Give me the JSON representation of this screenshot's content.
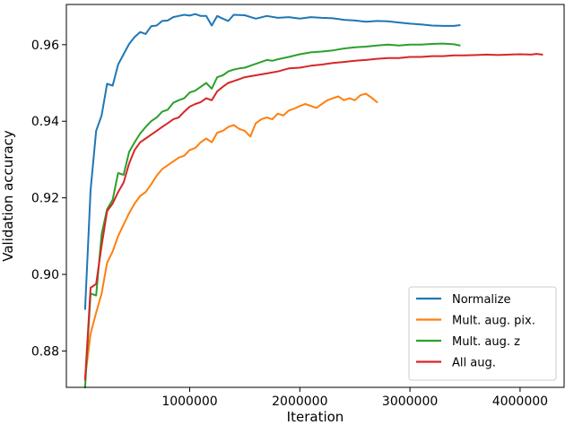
{
  "chart_data": {
    "type": "line",
    "title": "",
    "xlabel": "Iteration",
    "ylabel": "Validation accuracy",
    "xlim": [
      -120000,
      4400000
    ],
    "ylim": [
      0.8705,
      0.9705
    ],
    "xticks": [
      {
        "value": 1000000,
        "label": "1000000"
      },
      {
        "value": 2000000,
        "label": "2000000"
      },
      {
        "value": 3000000,
        "label": "3000000"
      },
      {
        "value": 4000000,
        "label": "4000000"
      }
    ],
    "yticks": [
      {
        "value": 0.88,
        "label": "0.88"
      },
      {
        "value": 0.9,
        "label": "0.90"
      },
      {
        "value": 0.92,
        "label": "0.92"
      },
      {
        "value": 0.94,
        "label": "0.94"
      },
      {
        "value": 0.96,
        "label": "0.96"
      }
    ],
    "grid": false,
    "legend_position": "bottom-right",
    "series": [
      {
        "name": "Normalize",
        "color": "#1f77b4",
        "points": [
          [
            50000,
            0.891
          ],
          [
            100000,
            0.922
          ],
          [
            150000,
            0.9375
          ],
          [
            200000,
            0.9415
          ],
          [
            250000,
            0.9498
          ],
          [
            300000,
            0.9493
          ],
          [
            350000,
            0.9548
          ],
          [
            400000,
            0.9575
          ],
          [
            450000,
            0.9602
          ],
          [
            500000,
            0.962
          ],
          [
            550000,
            0.9633
          ],
          [
            600000,
            0.9628
          ],
          [
            650000,
            0.9648
          ],
          [
            700000,
            0.965
          ],
          [
            750000,
            0.9662
          ],
          [
            800000,
            0.9663
          ],
          [
            850000,
            0.9672
          ],
          [
            900000,
            0.9675
          ],
          [
            950000,
            0.9678
          ],
          [
            1000000,
            0.9676
          ],
          [
            1050000,
            0.968
          ],
          [
            1100000,
            0.9675
          ],
          [
            1150000,
            0.9675
          ],
          [
            1200000,
            0.965
          ],
          [
            1250000,
            0.9675
          ],
          [
            1300000,
            0.9668
          ],
          [
            1350000,
            0.9662
          ],
          [
            1400000,
            0.9678
          ],
          [
            1500000,
            0.9677
          ],
          [
            1600000,
            0.9668
          ],
          [
            1700000,
            0.9675
          ],
          [
            1800000,
            0.967
          ],
          [
            1900000,
            0.9672
          ],
          [
            2000000,
            0.9668
          ],
          [
            2100000,
            0.9672
          ],
          [
            2200000,
            0.967
          ],
          [
            2300000,
            0.9669
          ],
          [
            2400000,
            0.9665
          ],
          [
            2500000,
            0.9663
          ],
          [
            2600000,
            0.966
          ],
          [
            2700000,
            0.9662
          ],
          [
            2800000,
            0.9661
          ],
          [
            2900000,
            0.9658
          ],
          [
            3000000,
            0.9655
          ],
          [
            3100000,
            0.9653
          ],
          [
            3200000,
            0.965
          ],
          [
            3300000,
            0.9649
          ],
          [
            3400000,
            0.9649
          ],
          [
            3450000,
            0.9651
          ]
        ]
      },
      {
        "name": "Mult. aug. pix.",
        "color": "#ff7f0e",
        "points": [
          [
            50000,
            0.873
          ],
          [
            100000,
            0.8845
          ],
          [
            150000,
            0.89
          ],
          [
            200000,
            0.895
          ],
          [
            250000,
            0.903
          ],
          [
            300000,
            0.906
          ],
          [
            350000,
            0.91
          ],
          [
            400000,
            0.913
          ],
          [
            450000,
            0.916
          ],
          [
            500000,
            0.9185
          ],
          [
            550000,
            0.9205
          ],
          [
            600000,
            0.9215
          ],
          [
            650000,
            0.9235
          ],
          [
            700000,
            0.9258
          ],
          [
            750000,
            0.9275
          ],
          [
            800000,
            0.9285
          ],
          [
            850000,
            0.9295
          ],
          [
            900000,
            0.9305
          ],
          [
            950000,
            0.931
          ],
          [
            1000000,
            0.9325
          ],
          [
            1050000,
            0.933
          ],
          [
            1100000,
            0.9345
          ],
          [
            1150000,
            0.9355
          ],
          [
            1200000,
            0.9345
          ],
          [
            1250000,
            0.937
          ],
          [
            1300000,
            0.9375
          ],
          [
            1350000,
            0.9385
          ],
          [
            1400000,
            0.939
          ],
          [
            1450000,
            0.938
          ],
          [
            1500000,
            0.9375
          ],
          [
            1550000,
            0.936
          ],
          [
            1600000,
            0.9395
          ],
          [
            1650000,
            0.9405
          ],
          [
            1700000,
            0.941
          ],
          [
            1750000,
            0.9405
          ],
          [
            1800000,
            0.942
          ],
          [
            1850000,
            0.9415
          ],
          [
            1900000,
            0.9428
          ],
          [
            1950000,
            0.9433
          ],
          [
            2000000,
            0.944
          ],
          [
            2050000,
            0.9445
          ],
          [
            2100000,
            0.944
          ],
          [
            2150000,
            0.9435
          ],
          [
            2200000,
            0.9445
          ],
          [
            2250000,
            0.9455
          ],
          [
            2300000,
            0.946
          ],
          [
            2350000,
            0.9465
          ],
          [
            2400000,
            0.9455
          ],
          [
            2450000,
            0.946
          ],
          [
            2500000,
            0.9455
          ],
          [
            2550000,
            0.9468
          ],
          [
            2600000,
            0.9472
          ],
          [
            2650000,
            0.9462
          ],
          [
            2700000,
            0.945
          ]
        ]
      },
      {
        "name": "Mult. aug. z",
        "color": "#2ca02c",
        "points": [
          [
            50000,
            0.8705
          ],
          [
            100000,
            0.895
          ],
          [
            150000,
            0.8945
          ],
          [
            200000,
            0.9105
          ],
          [
            250000,
            0.917
          ],
          [
            300000,
            0.9195
          ],
          [
            350000,
            0.9265
          ],
          [
            400000,
            0.926
          ],
          [
            450000,
            0.932
          ],
          [
            500000,
            0.9345
          ],
          [
            550000,
            0.9368
          ],
          [
            600000,
            0.9385
          ],
          [
            650000,
            0.94
          ],
          [
            700000,
            0.941
          ],
          [
            750000,
            0.9425
          ],
          [
            800000,
            0.943
          ],
          [
            850000,
            0.9448
          ],
          [
            900000,
            0.9455
          ],
          [
            950000,
            0.946
          ],
          [
            1000000,
            0.9475
          ],
          [
            1050000,
            0.948
          ],
          [
            1100000,
            0.949
          ],
          [
            1150000,
            0.95
          ],
          [
            1200000,
            0.9485
          ],
          [
            1250000,
            0.9515
          ],
          [
            1300000,
            0.952
          ],
          [
            1350000,
            0.953
          ],
          [
            1400000,
            0.9535
          ],
          [
            1450000,
            0.9538
          ],
          [
            1500000,
            0.954
          ],
          [
            1550000,
            0.9545
          ],
          [
            1600000,
            0.955
          ],
          [
            1650000,
            0.9555
          ],
          [
            1700000,
            0.956
          ],
          [
            1750000,
            0.9558
          ],
          [
            1800000,
            0.9562
          ],
          [
            1900000,
            0.9568
          ],
          [
            2000000,
            0.9575
          ],
          [
            2100000,
            0.958
          ],
          [
            2200000,
            0.9582
          ],
          [
            2300000,
            0.9585
          ],
          [
            2400000,
            0.959
          ],
          [
            2500000,
            0.9593
          ],
          [
            2600000,
            0.9595
          ],
          [
            2700000,
            0.9598
          ],
          [
            2800000,
            0.96
          ],
          [
            2900000,
            0.9598
          ],
          [
            3000000,
            0.96
          ],
          [
            3100000,
            0.96
          ],
          [
            3200000,
            0.9602
          ],
          [
            3300000,
            0.9603
          ],
          [
            3400000,
            0.9601
          ],
          [
            3450000,
            0.9598
          ]
        ]
      },
      {
        "name": "All aug.",
        "color": "#d62728",
        "points": [
          [
            50000,
            0.8725
          ],
          [
            100000,
            0.8965
          ],
          [
            150000,
            0.8975
          ],
          [
            200000,
            0.9075
          ],
          [
            250000,
            0.9165
          ],
          [
            300000,
            0.9185
          ],
          [
            350000,
            0.9215
          ],
          [
            400000,
            0.924
          ],
          [
            450000,
            0.929
          ],
          [
            500000,
            0.9325
          ],
          [
            550000,
            0.9345
          ],
          [
            600000,
            0.9355
          ],
          [
            650000,
            0.9365
          ],
          [
            700000,
            0.9375
          ],
          [
            750000,
            0.9385
          ],
          [
            800000,
            0.9395
          ],
          [
            850000,
            0.9405
          ],
          [
            900000,
            0.941
          ],
          [
            950000,
            0.9425
          ],
          [
            1000000,
            0.9438
          ],
          [
            1050000,
            0.9445
          ],
          [
            1100000,
            0.945
          ],
          [
            1150000,
            0.946
          ],
          [
            1200000,
            0.9455
          ],
          [
            1250000,
            0.9478
          ],
          [
            1300000,
            0.949
          ],
          [
            1350000,
            0.95
          ],
          [
            1400000,
            0.9505
          ],
          [
            1450000,
            0.951
          ],
          [
            1500000,
            0.9515
          ],
          [
            1600000,
            0.952
          ],
          [
            1700000,
            0.9525
          ],
          [
            1800000,
            0.953
          ],
          [
            1900000,
            0.9538
          ],
          [
            2000000,
            0.954
          ],
          [
            2100000,
            0.9545
          ],
          [
            2200000,
            0.9548
          ],
          [
            2300000,
            0.9552
          ],
          [
            2400000,
            0.9555
          ],
          [
            2500000,
            0.9558
          ],
          [
            2600000,
            0.956
          ],
          [
            2700000,
            0.9563
          ],
          [
            2800000,
            0.9565
          ],
          [
            2900000,
            0.9565
          ],
          [
            3000000,
            0.9568
          ],
          [
            3100000,
            0.9568
          ],
          [
            3200000,
            0.957
          ],
          [
            3300000,
            0.957
          ],
          [
            3400000,
            0.9572
          ],
          [
            3500000,
            0.9572
          ],
          [
            3600000,
            0.9573
          ],
          [
            3700000,
            0.9574
          ],
          [
            3800000,
            0.9573
          ],
          [
            3900000,
            0.9574
          ],
          [
            4000000,
            0.9575
          ],
          [
            4100000,
            0.9574
          ],
          [
            4150000,
            0.9576
          ],
          [
            4200000,
            0.9574
          ]
        ]
      }
    ]
  }
}
